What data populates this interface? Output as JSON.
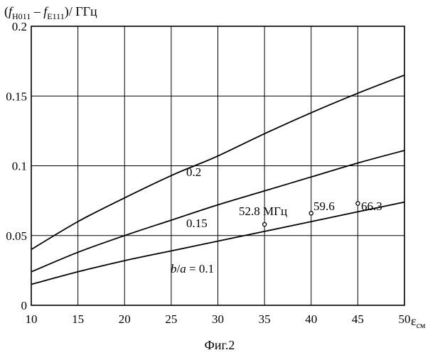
{
  "chart_data": {
    "type": "line",
    "ylabel": {
      "open": "(",
      "f1": "f",
      "sub1": "H011",
      "minus": " – ",
      "f2": "f",
      "sub2": "E111",
      "close": ")/ ГГц"
    },
    "xlabel": {
      "eps": "ε",
      "sub": "см"
    },
    "caption": "Фиг.2",
    "xlim": [
      10,
      50
    ],
    "ylim": [
      0,
      0.2
    ],
    "x_ticks": [
      10,
      15,
      20,
      25,
      30,
      35,
      40,
      45,
      50
    ],
    "y_ticks": [
      0,
      0.05,
      0.1,
      0.15,
      0.2
    ],
    "x_tick_labels": [
      "10",
      "15",
      "20",
      "25",
      "30",
      "35",
      "40",
      "45",
      "50"
    ],
    "y_tick_labels": [
      "0",
      "0.05",
      "0.1",
      "0.15",
      "0.2"
    ],
    "grid": true,
    "series": [
      {
        "name": "0.2",
        "x": [
          10,
          15,
          20,
          25,
          27.5,
          30,
          35,
          40,
          45,
          50
        ],
        "y": [
          0.04,
          0.06,
          0.077,
          0.093,
          0.1,
          0.107,
          0.123,
          0.138,
          0.152,
          0.165
        ]
      },
      {
        "name": "0.15",
        "x": [
          10,
          15,
          20,
          25,
          30,
          35,
          40,
          45,
          50
        ],
        "y": [
          0.024,
          0.038,
          0.05,
          0.061,
          0.072,
          0.082,
          0.092,
          0.102,
          0.111
        ]
      },
      {
        "name": "b/a = 0.1",
        "x": [
          10,
          15,
          20,
          25,
          30,
          35,
          40,
          45,
          50
        ],
        "y": [
          0.015,
          0.024,
          0.032,
          0.039,
          0.046,
          0.053,
          0.06,
          0.067,
          0.074
        ]
      }
    ],
    "curve_labels": [
      {
        "text": "0.2"
      },
      {
        "text": "0.15"
      },
      {
        "parts": [
          "b",
          "/",
          "a",
          " = 0.1"
        ]
      }
    ],
    "annotations": [
      {
        "x": 35,
        "y": 0.058,
        "text": "52.8 МГц"
      },
      {
        "x": 40,
        "y": 0.066,
        "text": "59.6"
      },
      {
        "x": 45,
        "y": 0.073,
        "text": "66.3"
      }
    ],
    "line_color": "#000000"
  }
}
